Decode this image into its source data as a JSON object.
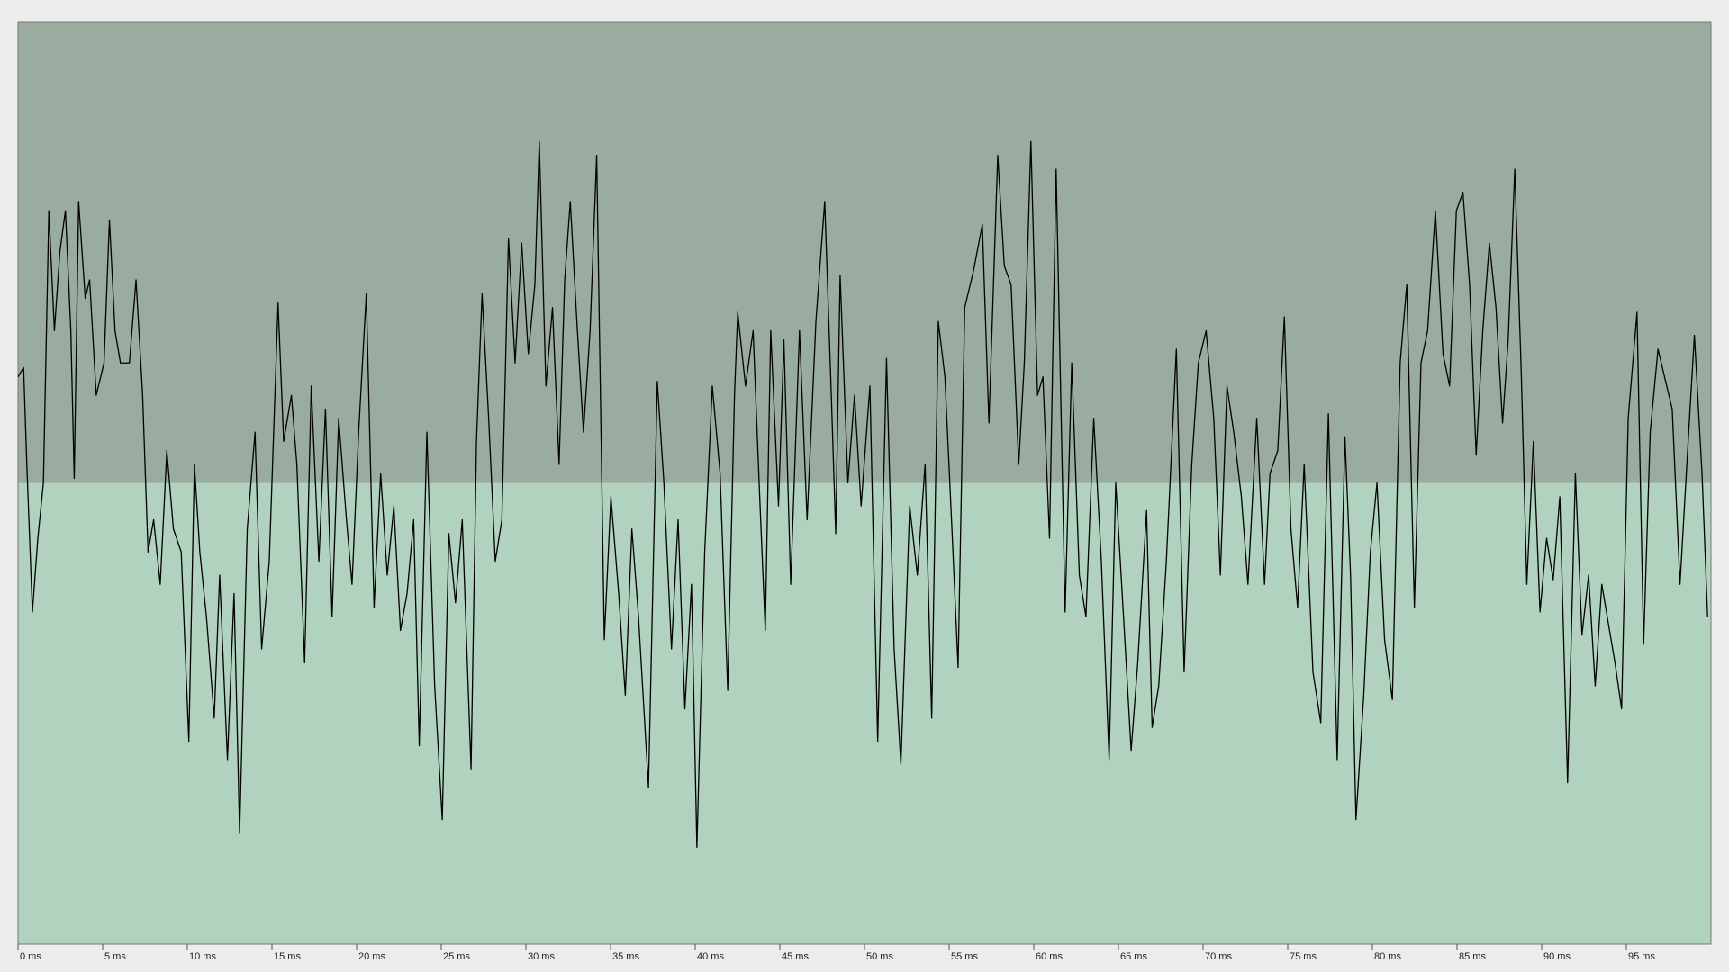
{
  "chart_data": {
    "type": "line",
    "color": "#000000",
    "background_colors": [
      "#9aab9f",
      "#b0d2be"
    ],
    "xlim": [
      0,
      100
    ],
    "ylim": [
      -1,
      1
    ],
    "xticks": [
      {
        "value": 0,
        "label": "0 ms"
      },
      {
        "value": 5,
        "label": "5 ms"
      },
      {
        "value": 10,
        "label": "10 ms"
      },
      {
        "value": 15,
        "label": "15 ms"
      },
      {
        "value": 20,
        "label": "20 ms"
      },
      {
        "value": 25,
        "label": "25 ms"
      },
      {
        "value": 30,
        "label": "30 ms"
      },
      {
        "value": 35,
        "label": "35 ms"
      },
      {
        "value": 40,
        "label": "40 ms"
      },
      {
        "value": 45,
        "label": "45 ms"
      },
      {
        "value": 50,
        "label": "50 ms"
      },
      {
        "value": 55,
        "label": "55 ms"
      },
      {
        "value": 60,
        "label": "60 ms"
      },
      {
        "value": 65,
        "label": "65 ms"
      },
      {
        "value": 70,
        "label": "70 ms"
      },
      {
        "value": 75,
        "label": "75 ms"
      },
      {
        "value": 80,
        "label": "80 ms"
      },
      {
        "value": 85,
        "label": "85 ms"
      },
      {
        "value": 90,
        "label": "90 ms"
      },
      {
        "value": 95,
        "label": "95 ms"
      }
    ],
    "x": [
      0,
      0.33,
      0.52,
      0.85,
      1.17,
      1.5,
      1.82,
      2.15,
      2.47,
      2.8,
      3.12,
      3.32,
      3.58,
      3.97,
      4.23,
      4.62,
      5.08,
      5.4,
      5.73,
      6.05,
      6.58,
      6.97,
      7.36,
      7.68,
      8.01,
      8.4,
      8.79,
      9.18,
      9.64,
      10.09,
      10.42,
      10.74,
      11.13,
      11.59,
      11.91,
      12.37,
      12.76,
      13.09,
      13.54,
      14,
      14.39,
      14.84,
      15.36,
      15.69,
      16.15,
      16.47,
      16.93,
      17.32,
      17.77,
      18.16,
      18.55,
      18.94,
      19.4,
      19.73,
      20.12,
      20.57,
      21.03,
      21.42,
      21.81,
      22.2,
      22.59,
      22.98,
      23.37,
      23.7,
      24.15,
      24.61,
      25.06,
      25.45,
      25.84,
      26.24,
      26.76,
      27.08,
      27.41,
      27.8,
      28.19,
      28.58,
      28.97,
      29.36,
      29.75,
      30.14,
      30.53,
      30.79,
      31.18,
      31.57,
      31.96,
      32.29,
      32.62,
      33.01,
      33.4,
      33.79,
      34.18,
      34.63,
      35.02,
      35.48,
      35.87,
      36.26,
      36.65,
      37.24,
      37.76,
      38.15,
      38.6,
      38.99,
      39.39,
      39.78,
      40.1,
      40.56,
      41.01,
      41.47,
      41.92,
      42.32,
      42.51,
      42.97,
      43.42,
      43.81,
      44.14,
      44.46,
      44.92,
      45.24,
      45.64,
      46.16,
      46.61,
      47.13,
      47.65,
      48.04,
      48.3,
      48.56,
      49.02,
      49.41,
      49.8,
      50.32,
      50.78,
      51.3,
      51.75,
      52.15,
      52.67,
      53.12,
      53.58,
      53.97,
      54.36,
      54.75,
      55.14,
      55.53,
      55.92,
      56.44,
      56.96,
      57.35,
      57.87,
      58.26,
      58.66,
      59.11,
      59.44,
      59.83,
      60.22,
      60.54,
      60.93,
      61.32,
      61.85,
      62.24,
      62.69,
      63.08,
      63.54,
      63.99,
      64.45,
      64.84,
      65.3,
      65.75,
      66.14,
      66.66,
      66.99,
      67.38,
      67.83,
      68.42,
      68.88,
      69.33,
      69.72,
      70.18,
      70.63,
      71.02,
      71.41,
      71.81,
      72.26,
      72.65,
      73.17,
      73.63,
      73.95,
      74.41,
      74.8,
      75.19,
      75.58,
      75.97,
      76.49,
      76.95,
      77.4,
      77.92,
      78.38,
      78.71,
      79.03,
      79.49,
      79.88,
      80.27,
      80.72,
      81.18,
      81.64,
      82.03,
      82.48,
      82.87,
      83.26,
      83.72,
      84.17,
      84.56,
      84.96,
      85.35,
      85.74,
      86.13,
      86.52,
      86.91,
      87.3,
      87.69,
      88.02,
      88.41,
      88.8,
      89.12,
      89.51,
      89.9,
      90.29,
      90.68,
      91.07,
      91.53,
      91.99,
      92.38,
      92.77,
      93.16,
      93.55,
      93.87,
      94.33,
      94.72,
      95.11,
      95.63,
      96.02,
      96.41,
      96.87,
      97.32,
      97.71,
      98.17,
      98.62,
      99.02,
      99.47,
      99.8
    ],
    "values": [
      0.23,
      0.25,
      0.04,
      -0.28,
      -0.12,
      0,
      0.59,
      0.33,
      0.5,
      0.59,
      0.33,
      0.01,
      0.61,
      0.4,
      0.44,
      0.19,
      0.26,
      0.57,
      0.33,
      0.26,
      0.26,
      0.44,
      0.19,
      -0.15,
      -0.08,
      -0.22,
      0.07,
      -0.1,
      -0.15,
      -0.56,
      0.04,
      -0.15,
      -0.29,
      -0.51,
      -0.2,
      -0.6,
      -0.24,
      -0.76,
      -0.1,
      0.11,
      -0.36,
      -0.17,
      0.39,
      0.09,
      0.19,
      0.04,
      -0.39,
      0.21,
      -0.17,
      0.16,
      -0.29,
      0.14,
      -0.08,
      -0.22,
      0.11,
      0.41,
      -0.27,
      0.02,
      -0.2,
      -0.05,
      -0.32,
      -0.24,
      -0.08,
      -0.57,
      0.11,
      -0.44,
      -0.73,
      -0.11,
      -0.26,
      -0.08,
      -0.62,
      0.09,
      0.41,
      0.14,
      -0.17,
      -0.08,
      0.53,
      0.26,
      0.52,
      0.28,
      0.43,
      0.74,
      0.21,
      0.38,
      0.04,
      0.44,
      0.61,
      0.35,
      0.11,
      0.33,
      0.71,
      -0.34,
      -0.03,
      -0.24,
      -0.46,
      -0.1,
      -0.29,
      -0.66,
      0.22,
      0,
      -0.36,
      -0.08,
      -0.49,
      -0.22,
      -0.79,
      -0.15,
      0.21,
      0.02,
      -0.45,
      0.19,
      0.37,
      0.21,
      0.33,
      -0.03,
      -0.32,
      0.33,
      -0.05,
      0.31,
      -0.22,
      0.33,
      -0.08,
      0.35,
      0.61,
      0.19,
      -0.11,
      0.45,
      0,
      0.19,
      -0.05,
      0.21,
      -0.56,
      0.27,
      -0.36,
      -0.61,
      -0.05,
      -0.2,
      0.04,
      -0.51,
      0.35,
      0.23,
      -0.08,
      -0.4,
      0.38,
      0.46,
      0.56,
      0.13,
      0.71,
      0.47,
      0.43,
      0.04,
      0.26,
      0.74,
      0.19,
      0.23,
      -0.12,
      0.68,
      -0.28,
      0.26,
      -0.2,
      -0.29,
      0.14,
      -0.17,
      -0.6,
      0,
      -0.29,
      -0.58,
      -0.39,
      -0.06,
      -0.53,
      -0.44,
      -0.17,
      0.29,
      -0.41,
      0.04,
      0.26,
      0.33,
      0.14,
      -0.2,
      0.21,
      0.11,
      -0.03,
      -0.22,
      0.14,
      -0.22,
      0.02,
      0.07,
      0.36,
      -0.1,
      -0.27,
      0.04,
      -0.41,
      -0.52,
      0.15,
      -0.6,
      0.1,
      -0.2,
      -0.73,
      -0.46,
      -0.15,
      0,
      -0.34,
      -0.47,
      0.26,
      0.43,
      -0.27,
      0.26,
      0.33,
      0.59,
      0.28,
      0.21,
      0.59,
      0.63,
      0.43,
      0.06,
      0.33,
      0.52,
      0.38,
      0.13,
      0.31,
      0.68,
      0.23,
      -0.22,
      0.09,
      -0.28,
      -0.12,
      -0.21,
      -0.03,
      -0.65,
      0.02,
      -0.33,
      -0.2,
      -0.44,
      -0.22,
      -0.29,
      -0.39,
      -0.49,
      0.14,
      0.37,
      -0.35,
      0.11,
      0.29,
      0.22,
      0.16,
      -0.22,
      0.07,
      0.32,
      0.02,
      -0.29
    ]
  }
}
